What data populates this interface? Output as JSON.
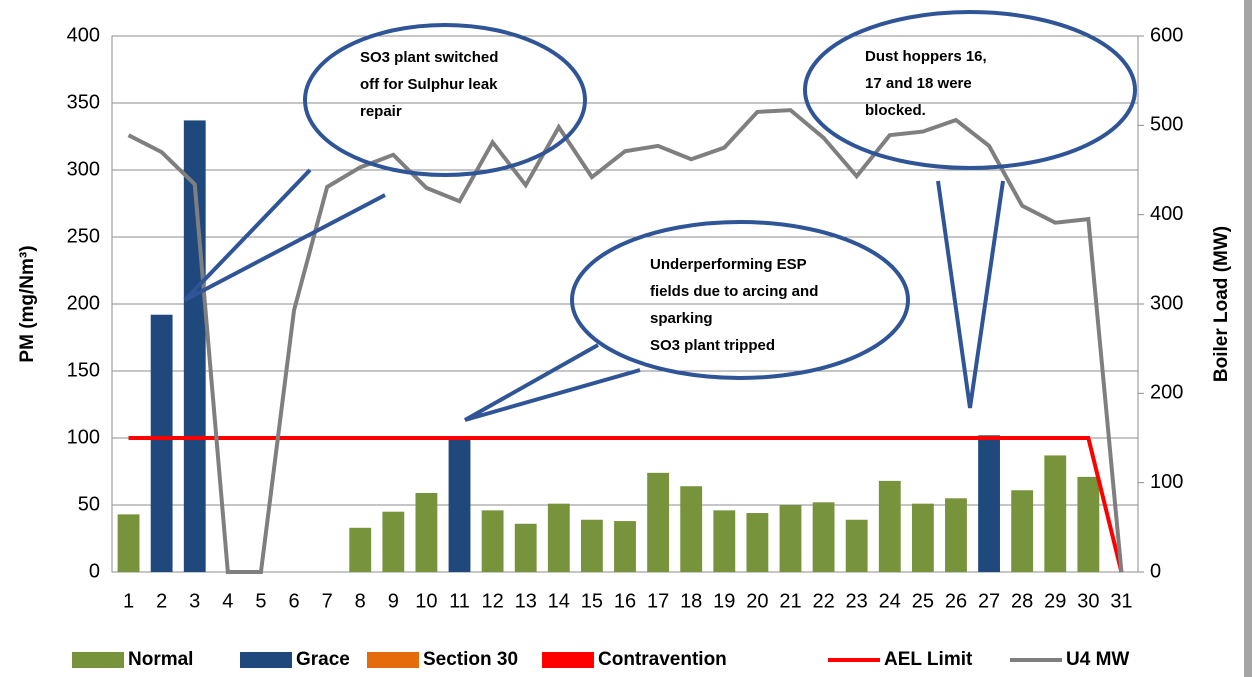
{
  "chart_data": {
    "type": "bar",
    "categories": [
      "1",
      "2",
      "3",
      "4",
      "5",
      "6",
      "7",
      "8",
      "9",
      "10",
      "11",
      "12",
      "13",
      "14",
      "15",
      "16",
      "17",
      "18",
      "19",
      "20",
      "21",
      "22",
      "23",
      "24",
      "25",
      "26",
      "27",
      "28",
      "29",
      "30",
      "31"
    ],
    "series": [
      {
        "name": "Normal",
        "color": "#77933c",
        "values": [
          43,
          null,
          null,
          null,
          null,
          null,
          null,
          33,
          45,
          59,
          null,
          46,
          36,
          51,
          39,
          38,
          74,
          64,
          46,
          44,
          50,
          52,
          39,
          68,
          51,
          55,
          null,
          61,
          87,
          71,
          null
        ]
      },
      {
        "name": "Grace",
        "color": "#1f497d",
        "values": [
          null,
          192,
          337,
          null,
          null,
          null,
          null,
          null,
          null,
          null,
          101,
          null,
          null,
          null,
          null,
          null,
          null,
          null,
          null,
          null,
          null,
          null,
          null,
          null,
          null,
          null,
          102,
          null,
          null,
          null,
          null
        ]
      },
      {
        "name": "Section 30",
        "color": "#e46c0a",
        "values": [
          null,
          null,
          null,
          null,
          null,
          null,
          null,
          null,
          null,
          null,
          null,
          null,
          null,
          null,
          null,
          null,
          null,
          null,
          null,
          null,
          null,
          null,
          null,
          null,
          null,
          null,
          null,
          null,
          null,
          null,
          null
        ]
      },
      {
        "name": "Contravention",
        "color": "#ff0000",
        "values": [
          null,
          null,
          null,
          null,
          null,
          null,
          null,
          null,
          null,
          null,
          null,
          null,
          null,
          null,
          null,
          null,
          null,
          null,
          null,
          null,
          null,
          null,
          null,
          null,
          null,
          null,
          null,
          null,
          null,
          null,
          null
        ]
      },
      {
        "name": "AEL Limit",
        "type": "line",
        "color": "#ff0000",
        "values": [
          100,
          100,
          100,
          100,
          100,
          100,
          100,
          100,
          100,
          100,
          100,
          100,
          100,
          100,
          100,
          100,
          100,
          100,
          100,
          100,
          100,
          100,
          100,
          100,
          100,
          100,
          100,
          100,
          100,
          100,
          0
        ]
      },
      {
        "name": "U4 MW",
        "type": "line",
        "axis": "y2",
        "color": "#7f7f7f",
        "values": [
          489,
          470,
          434,
          0,
          0,
          293,
          431,
          453,
          467,
          430,
          415,
          481,
          433,
          498,
          442,
          471,
          477,
          462,
          475,
          515,
          517,
          486,
          443,
          489,
          493,
          506,
          477,
          410,
          391,
          395,
          0
        ]
      }
    ],
    "ylabel": "PM (mg/Nm³)",
    "y2label": "Boiler Load (MW)",
    "ylim": [
      0,
      400
    ],
    "yticks": [
      0,
      50,
      100,
      150,
      200,
      250,
      300,
      350,
      400
    ],
    "y2lim": [
      0,
      600
    ],
    "y2ticks": [
      0,
      100,
      200,
      300,
      400,
      500,
      600
    ],
    "grid": true,
    "legend": "bottom",
    "annotations": [
      {
        "lines": [
          "SO3 plant switched",
          "off for Sulphur leak",
          "repair"
        ]
      },
      {
        "lines": [
          "Dust hoppers 16,",
          "17 and 18 were",
          "blocked."
        ]
      },
      {
        "lines": [
          "Underperforming ESP",
          "fields due to arcing and",
          "sparking",
          "SO3 plant tripped"
        ]
      }
    ]
  }
}
